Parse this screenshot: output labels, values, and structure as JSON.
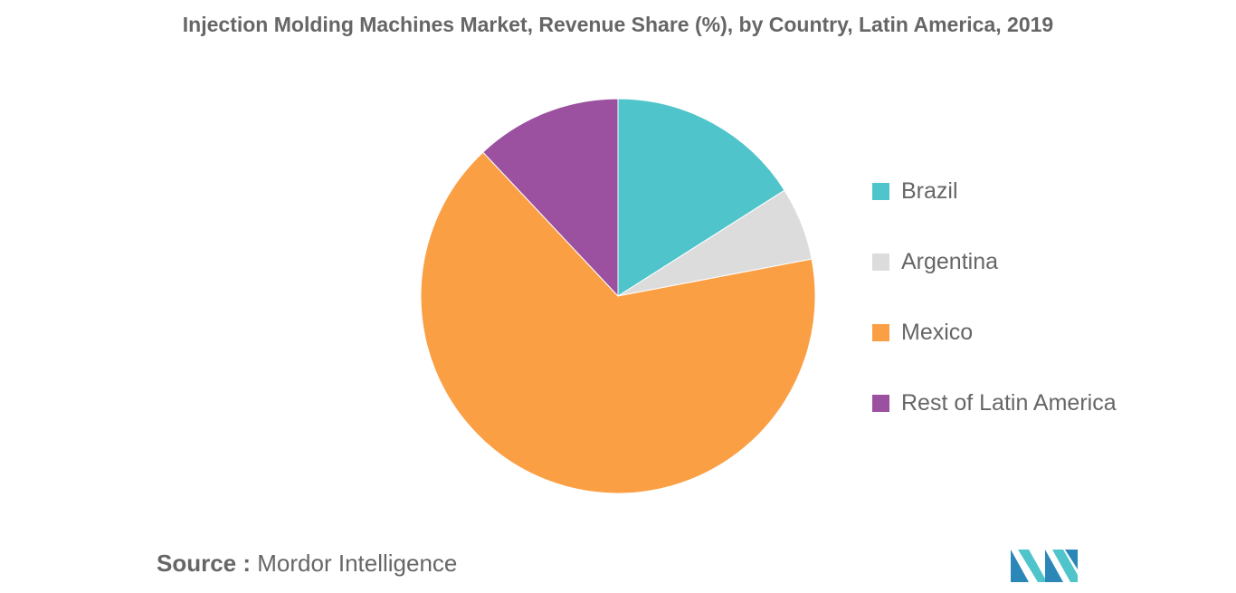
{
  "chart_data": {
    "type": "pie",
    "title": "Injection Molding Machines Market, Revenue Share (%), by Country, Latin America, 2019",
    "series": [
      {
        "name": "Brazil",
        "value": 16,
        "color": "#4fc4ca"
      },
      {
        "name": "Argentina",
        "value": 6,
        "color": "#dcdcdc"
      },
      {
        "name": "Mexico",
        "value": 66,
        "color": "#fb9f45"
      },
      {
        "name": "Rest of Latin America",
        "value": 12,
        "color": "#9b51a0"
      }
    ],
    "legend_position": "right",
    "start_angle": "top",
    "direction": "clockwise"
  },
  "source": {
    "label": "Source :",
    "text": "Mordor Intelligence"
  },
  "logo": {
    "icon": "mordor-intelligence-logo-icon",
    "colors": [
      "#2b87b8",
      "#4fc4ca"
    ]
  }
}
